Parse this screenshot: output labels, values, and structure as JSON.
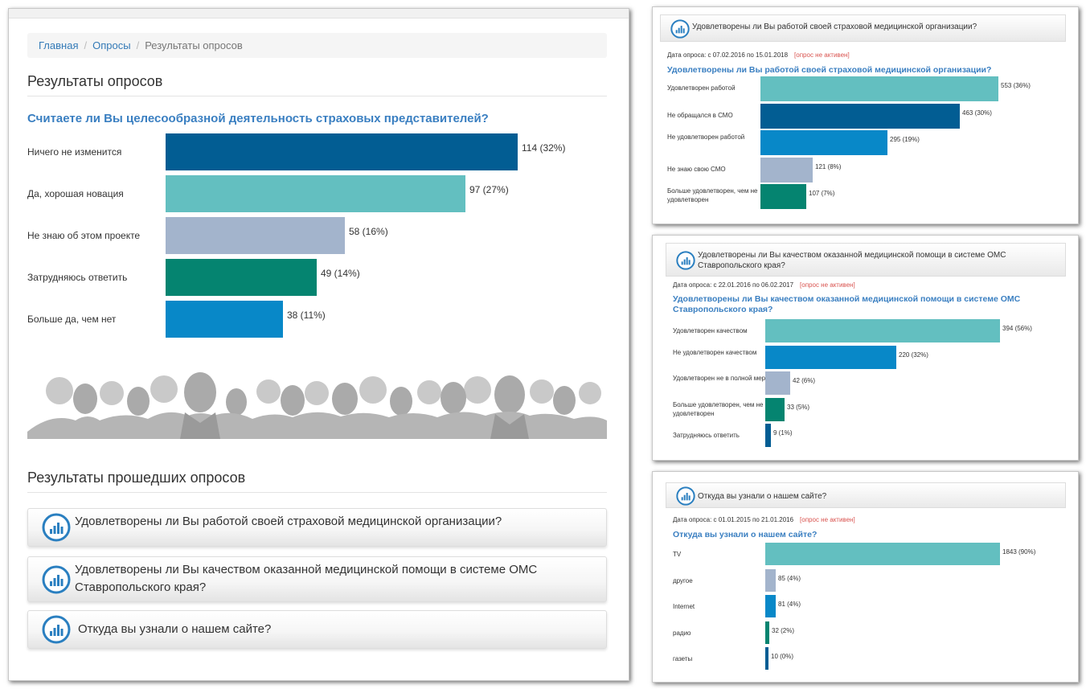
{
  "breadcrumb": {
    "home": "Главная",
    "polls": "Опросы",
    "current": "Результаты опросов",
    "separator": "/"
  },
  "page_title": "Результаты опросов",
  "current_poll": {
    "question": "Считаете ли Вы целесообразной деятельность страховых представителей?",
    "answers": [
      {
        "label": "Ничего не изменится",
        "count": 114,
        "value_text": "114 (32%)",
        "color": "#025d93"
      },
      {
        "label": "Да, хорошая новация",
        "count": 97,
        "value_text": "97 (27%)",
        "color": "#63bfc0"
      },
      {
        "label": "Не знаю об этом проекте",
        "count": 58,
        "value_text": "58 (16%)",
        "color": "#a3b4cc"
      },
      {
        "label": "Затрудняюсь ответить",
        "count": 49,
        "value_text": "49 (14%)",
        "color": "#058470"
      },
      {
        "label": "Больше да, чем нет",
        "count": 38,
        "value_text": "38 (11%)",
        "color": "#0888c8"
      }
    ]
  },
  "past_title": "Результаты прошедших опросов",
  "past_polls": [
    {
      "title": "Удовлетворены ли Вы работой своей страховой медицинской организации?"
    },
    {
      "title": "Удовлетворены ли Вы качеством оказанной медицинской помощи в системе ОМС Ставропольского края?"
    },
    {
      "title": "Откуда вы узнали о нашем сайте?"
    }
  ],
  "inactive_label": "[опрос не активен]",
  "poll_results": [
    {
      "header": "Удовлетворены ли Вы работой своей страховой медицинской организации?",
      "date_text": "Дата опроса: с 07.02.2016 по 15.01.2018",
      "question": "Удовлетворены ли Вы работой своей страховой медицинской организации?",
      "answers": [
        {
          "label": "Удовлетворен работой",
          "count": 553,
          "value_text": "553 (36%)",
          "color": "#63bfc0"
        },
        {
          "label": "Не обращался в СМО",
          "count": 463,
          "value_text": "463 (30%)",
          "color": "#025d93"
        },
        {
          "label": "Не удовлетворен работой",
          "count": 295,
          "value_text": "295 (19%)",
          "color": "#0888c8"
        },
        {
          "label": "Не знаю свою СМО",
          "count": 121,
          "value_text": "121 (8%)",
          "color": "#a3b4cc"
        },
        {
          "label": "Больше удовлетворен, чем не удовлетворен",
          "count": 107,
          "value_text": "107 (7%)",
          "color": "#058470"
        }
      ]
    },
    {
      "header": "Удовлетворены ли Вы качеством оказанной медицинской помощи в системе ОМС Ставропольского края?",
      "date_text": "Дата опроса: с 22.01.2016 по 06.02.2017",
      "question": "Удовлетворены ли Вы качеством оказанной медицинской помощи в системе ОМС Ставропольского края?",
      "answers": [
        {
          "label": "Удовлетворен качеством",
          "count": 394,
          "value_text": "394 (56%)",
          "color": "#63bfc0"
        },
        {
          "label": "Не удовлетворен качеством",
          "count": 220,
          "value_text": "220 (32%)",
          "color": "#0888c8"
        },
        {
          "label": "Удовлетворен не в полной мере",
          "count": 42,
          "value_text": "42 (6%)",
          "color": "#a3b4cc"
        },
        {
          "label": "Больше удовлетворен, чем не удовлетворен",
          "count": 33,
          "value_text": "33 (5%)",
          "color": "#058470"
        },
        {
          "label": "Затрудняюсь ответить",
          "count": 9,
          "value_text": "9 (1%)",
          "color": "#025d93"
        }
      ]
    },
    {
      "header": "Откуда вы узнали о нашем сайте?",
      "date_text": "Дата опроса: с 01.01.2015 по 21.01.2016",
      "question": "Откуда вы узнали о нашем сайте?",
      "answers": [
        {
          "label": "TV",
          "count": 1843,
          "value_text": "1843 (90%)",
          "color": "#63bfc0"
        },
        {
          "label": "другое",
          "count": 85,
          "value_text": "85 (4%)",
          "color": "#a3b4cc"
        },
        {
          "label": "Internet",
          "count": 81,
          "value_text": "81 (4%)",
          "color": "#0888c8"
        },
        {
          "label": "радио",
          "count": 32,
          "value_text": "32 (2%)",
          "color": "#058470"
        },
        {
          "label": "газеты",
          "count": 10,
          "value_text": "10 (0%)",
          "color": "#025d93"
        }
      ]
    }
  ],
  "icons": {
    "poll": "bar-chart-circle-icon",
    "crowd": "people-silhouettes"
  },
  "colors": {
    "link": "#337ab7",
    "question": "#3a7fc1",
    "inactive": "#d9534f"
  }
}
